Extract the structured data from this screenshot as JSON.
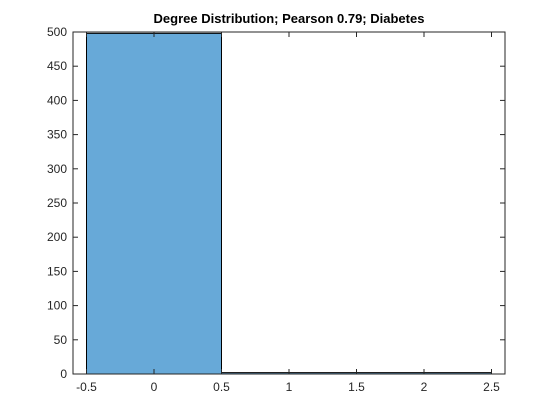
{
  "chart_data": {
    "type": "bar",
    "title": "Degree Distribution; Pearson 0.79; Diabetes",
    "xlabel": "",
    "ylabel": "",
    "xlim": [
      -0.6,
      2.6
    ],
    "ylim": [
      0,
      500
    ],
    "xticks": [
      -0.5,
      0,
      0.5,
      1,
      1.5,
      2,
      2.5
    ],
    "xtick_labels": [
      "-0.5",
      "0",
      "0.5",
      "1",
      "1.5",
      "2",
      "2.5"
    ],
    "yticks": [
      0,
      50,
      100,
      150,
      200,
      250,
      300,
      350,
      400,
      450,
      500
    ],
    "ytick_labels": [
      "0",
      "50",
      "100",
      "150",
      "200",
      "250",
      "300",
      "350",
      "400",
      "450",
      "500"
    ],
    "bins": [
      {
        "from": -0.5,
        "to": 0.5,
        "value": 498
      },
      {
        "from": 0.5,
        "to": 1.5,
        "value": 2
      },
      {
        "from": 1.5,
        "to": 2.5,
        "value": 2
      }
    ],
    "grid": false,
    "colors": {
      "bar_fill": "#67a9d8",
      "bar_edge": "#000000",
      "axis": "#262626"
    }
  }
}
